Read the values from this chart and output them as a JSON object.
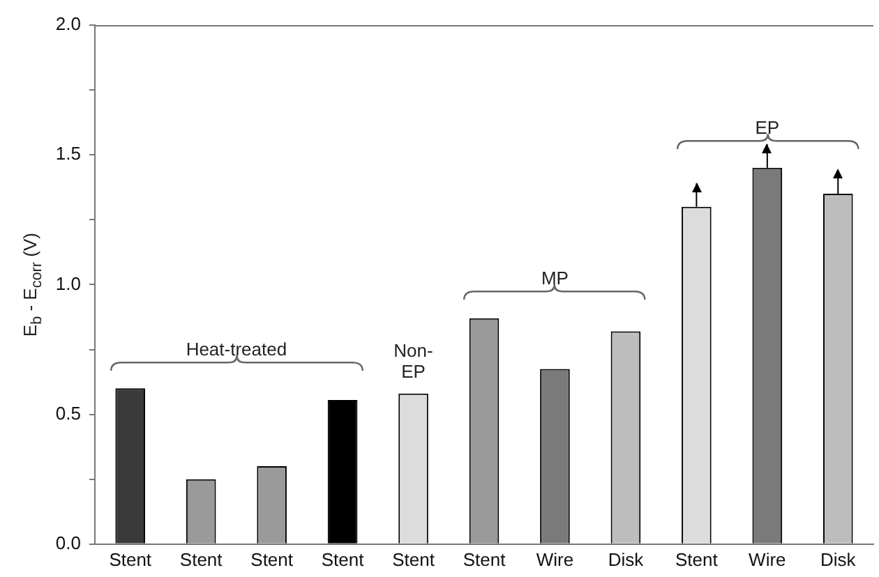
{
  "chart_data": {
    "type": "bar",
    "ylabel": "E$_{b}$ - E$_{corr}$ (V)",
    "categories": [
      "Stent",
      "Stent",
      "Stent",
      "Stent",
      "Stent",
      "Stent",
      "Wire",
      "Disk",
      "Stent",
      "Wire",
      "Disk"
    ],
    "values": [
      0.6,
      0.25,
      0.3,
      0.555,
      0.58,
      0.87,
      0.675,
      0.82,
      1.3,
      1.45,
      1.35
    ],
    "colors": [
      "#3a3a3a",
      "#9a9a9a",
      "#9a9a9a",
      "#000000",
      "#dcdcdc",
      "#9a9a9a",
      "#7a7a7a",
      "#bdbdbd",
      "#dcdcdc",
      "#7a7a7a",
      "#bdbdbd"
    ],
    "errors": [
      null,
      null,
      null,
      null,
      null,
      null,
      null,
      null,
      [
        1.3,
        1.39
      ],
      [
        1.45,
        1.54
      ],
      [
        1.35,
        1.44
      ]
    ],
    "ylim": [
      0,
      2
    ],
    "yticks": [
      {
        "value": 0,
        "label": "0.0"
      },
      {
        "value": 0.25,
        "label": null
      },
      {
        "value": 0.5,
        "label": "0.5"
      },
      {
        "value": 0.75,
        "label": null
      },
      {
        "value": 1,
        "label": "1.0"
      },
      {
        "value": 1.25,
        "label": null
      },
      {
        "value": 1.5,
        "label": "1.5"
      },
      {
        "value": 1.75,
        "label": null
      },
      {
        "value": 2,
        "label": "2.0"
      }
    ],
    "annotations": [
      "Heat-treated",
      "Non-EP",
      "MP",
      "EP"
    ],
    "grid": false,
    "legend": false
  }
}
